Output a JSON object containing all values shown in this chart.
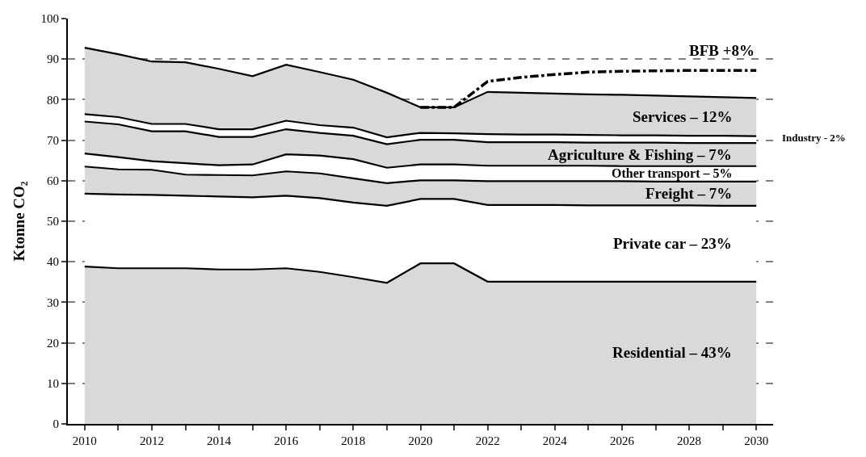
{
  "chart_data": {
    "type": "area",
    "stacked": true,
    "ylabel": "Ktonne CO₂",
    "x": [
      2010,
      2011,
      2012,
      2013,
      2014,
      2015,
      2016,
      2017,
      2018,
      2019,
      2020,
      2021,
      2022,
      2023,
      2024,
      2025,
      2026,
      2027,
      2028,
      2029,
      2030
    ],
    "series": [
      {
        "name": "Residential – 43%",
        "color": "#d9d9d9",
        "values": [
          38.8,
          38.4,
          38.4,
          38.4,
          38.1,
          38.1,
          38.4,
          37.5,
          36.2,
          34.8,
          39.6,
          39.6,
          35.1,
          35.1,
          35.1,
          35.1,
          35.1,
          35.1,
          35.1,
          35.1,
          35.1
        ]
      },
      {
        "name": "Private car – 23%",
        "color": "#ffffff",
        "values": [
          18.0,
          18.2,
          18.1,
          17.9,
          18.0,
          17.8,
          17.9,
          18.2,
          18.4,
          19.0,
          15.9,
          15.9,
          18.9,
          18.9,
          18.9,
          18.8,
          18.8,
          18.8,
          18.8,
          18.7,
          18.7
        ]
      },
      {
        "name": "Freight – 7%",
        "color": "#d9d9d9",
        "values": [
          6.7,
          6.2,
          6.2,
          5.2,
          5.3,
          5.4,
          6.0,
          6.1,
          6.0,
          5.6,
          4.6,
          4.6,
          5.9,
          5.9,
          5.9,
          6.0,
          6.0,
          5.9,
          5.9,
          6.0,
          6.0
        ]
      },
      {
        "name": "Other transport – 5%",
        "color": "#ffffff",
        "values": [
          3.2,
          3.0,
          2.1,
          2.8,
          2.4,
          2.7,
          4.2,
          4.4,
          4.7,
          3.8,
          3.9,
          3.9,
          3.8,
          3.8,
          3.8,
          3.8,
          3.7,
          3.8,
          3.8,
          3.8,
          3.8
        ]
      },
      {
        "name": "Agriculture & Fishing – 7%",
        "color": "#d9d9d9",
        "values": [
          7.9,
          8.1,
          7.4,
          7.9,
          7.0,
          6.8,
          6.2,
          5.6,
          5.8,
          5.8,
          6.1,
          6.1,
          5.8,
          5.8,
          5.8,
          5.7,
          5.8,
          5.8,
          5.7,
          5.7,
          5.7
        ]
      },
      {
        "name": "Industry - 2%",
        "color": "#ffffff",
        "values": [
          1.8,
          1.8,
          1.8,
          1.8,
          1.9,
          1.9,
          2.1,
          1.9,
          2.0,
          1.7,
          1.7,
          1.6,
          2.0,
          1.9,
          1.9,
          1.9,
          1.8,
          1.8,
          1.8,
          1.8,
          1.7
        ]
      },
      {
        "name": "Services – 12%",
        "color": "#d9d9d9",
        "values": [
          16.4,
          15.5,
          15.4,
          15.2,
          14.9,
          13.1,
          13.8,
          13.1,
          11.8,
          11.0,
          6.3,
          6.4,
          10.4,
          10.3,
          10.1,
          10.0,
          10.0,
          9.8,
          9.7,
          9.5,
          9.4
        ]
      },
      {
        "name": "BFB +8%",
        "type": "line",
        "color": "#000000",
        "line_style": "dashdot",
        "x": [
          2020,
          2021,
          2022,
          2023,
          2024,
          2025,
          2026,
          2027,
          2028,
          2029,
          2030
        ],
        "values": [
          78.1,
          78.1,
          84.5,
          85.5,
          86.2,
          86.8,
          87.0,
          87.1,
          87.2,
          87.2,
          87.2
        ]
      }
    ],
    "xlim": [
      2009.5,
      2030.5
    ],
    "xticks": [
      2010,
      {
        "value": 2011,
        "label": null
      },
      2012,
      {
        "value": 2013,
        "label": null
      },
      2014,
      {
        "value": 2015,
        "label": null
      },
      2016,
      {
        "value": 2017,
        "label": null
      },
      2018,
      {
        "value": 2019,
        "label": null
      },
      2020,
      {
        "value": 2021,
        "label": null
      },
      2022,
      {
        "value": 2023,
        "label": null
      },
      2024,
      {
        "value": 2025,
        "label": null
      },
      2026,
      {
        "value": 2027,
        "label": null
      },
      2028,
      {
        "value": 2029,
        "label": null
      },
      2030
    ],
    "ylim": [
      0,
      100
    ],
    "yticks": [
      0,
      10,
      20,
      30,
      40,
      50,
      60,
      70,
      80,
      90,
      100
    ],
    "grid": "y",
    "legend": false
  }
}
